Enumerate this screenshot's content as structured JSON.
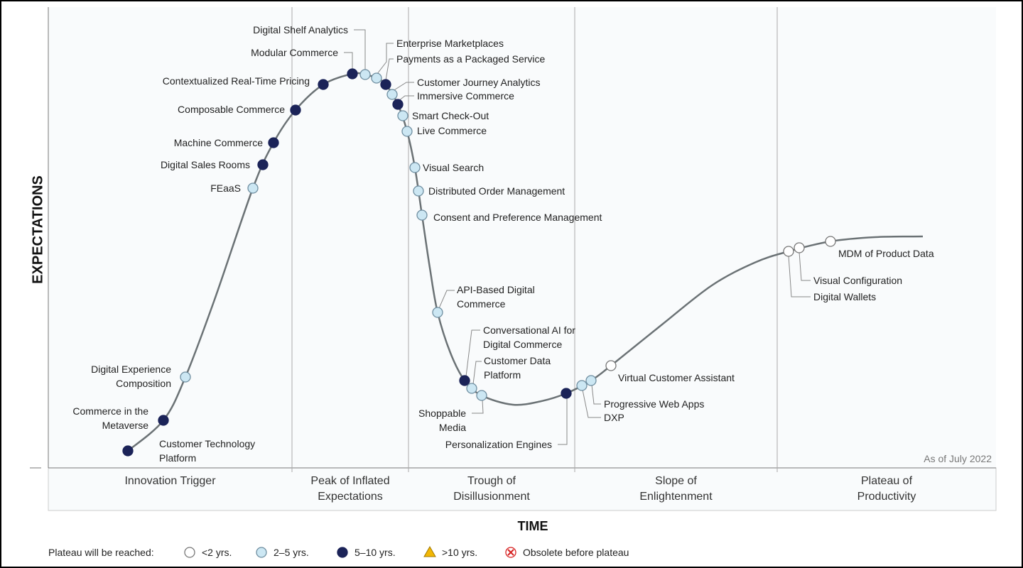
{
  "axis": {
    "y_label": "EXPECTATIONS",
    "x_label": "TIME"
  },
  "phases": [
    "Innovation Trigger",
    "Peak of Inflated Expectations",
    "Trough of Disillusionment",
    "Slope of Enlightenment",
    "Plateau of Productivity"
  ],
  "as_of": "As of July 2022",
  "legend": {
    "title": "Plateau will be reached:",
    "items": [
      "<2 yrs.",
      "2–5 yrs.",
      "5–10 yrs.",
      ">10 yrs.",
      "Obsolete before plateau"
    ]
  },
  "technologies": [
    {
      "label": "Customer Technology Platform",
      "plateau": "5–10 yrs."
    },
    {
      "label": "Commerce in the Metaverse",
      "plateau": "5–10 yrs."
    },
    {
      "label": "Digital Experience Composition",
      "plateau": "2–5 yrs."
    },
    {
      "label": "FEaaS",
      "plateau": "2–5 yrs."
    },
    {
      "label": "Digital Sales Rooms",
      "plateau": "5–10 yrs."
    },
    {
      "label": "Machine Commerce",
      "plateau": "5–10 yrs."
    },
    {
      "label": "Composable Commerce",
      "plateau": "5–10 yrs."
    },
    {
      "label": "Contextualized Real-Time Pricing",
      "plateau": "5–10 yrs."
    },
    {
      "label": "Modular Commerce",
      "plateau": "5–10 yrs."
    },
    {
      "label": "Digital Shelf Analytics",
      "plateau": "2–5 yrs."
    },
    {
      "label": "Enterprise Marketplaces",
      "plateau": "2–5 yrs."
    },
    {
      "label": "Payments as a Packaged Service",
      "plateau": "5–10 yrs."
    },
    {
      "label": "Customer Journey Analytics",
      "plateau": "2–5 yrs."
    },
    {
      "label": "Immersive Commerce",
      "plateau": "5–10 yrs."
    },
    {
      "label": "Smart Check-Out",
      "plateau": "2–5 yrs."
    },
    {
      "label": "Live Commerce",
      "plateau": "2–5 yrs."
    },
    {
      "label": "Visual Search",
      "plateau": "2–5 yrs."
    },
    {
      "label": "Distributed Order Management",
      "plateau": "2–5 yrs."
    },
    {
      "label": "Consent and Preference Management",
      "plateau": "2–5 yrs."
    },
    {
      "label": "API-Based Digital Commerce",
      "plateau": "2–5 yrs."
    },
    {
      "label": "Conversational AI for Digital Commerce",
      "plateau": "5–10 yrs."
    },
    {
      "label": "Customer Data Platform",
      "plateau": "2–5 yrs."
    },
    {
      "label": "Shoppable Media",
      "plateau": "2–5 yrs."
    },
    {
      "label": "Personalization Engines",
      "plateau": "5–10 yrs."
    },
    {
      "label": "DXP",
      "plateau": "2–5 yrs."
    },
    {
      "label": "Progressive Web Apps",
      "plateau": "2–5 yrs."
    },
    {
      "label": "Virtual Customer Assistant",
      "plateau": "<2 yrs."
    },
    {
      "label": "Digital Wallets",
      "plateau": "<2 yrs."
    },
    {
      "label": "Visual Configuration",
      "plateau": "<2 yrs."
    },
    {
      "label": "MDM of Product Data",
      "plateau": "<2 yrs."
    }
  ]
}
